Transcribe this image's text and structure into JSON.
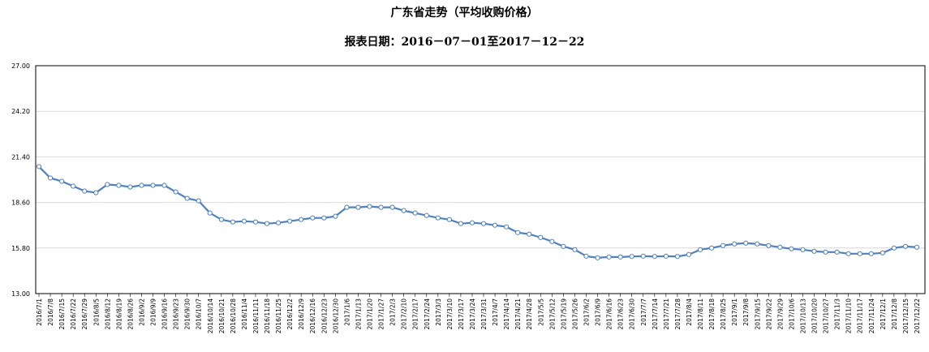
{
  "chart_data": {
    "type": "line",
    "title": "广东省走势（平均收购价格）",
    "subtitle": "报表日期：2016－07－01至2017－12－22",
    "xlabel": "",
    "ylabel": "",
    "ylim": [
      13.0,
      27.0
    ],
    "yticks": [
      "13.00",
      "15.80",
      "18.60",
      "21.40",
      "24.20",
      "27.00"
    ],
    "grid": {
      "horizontal": true,
      "vertical": false
    },
    "legend": "none",
    "line_color": "#4f81bd",
    "x": [
      "2016/7/1",
      "2016/7/8",
      "2016/7/15",
      "2016/7/22",
      "2016/7/29",
      "2016/8/5",
      "2016/8/12",
      "2016/8/19",
      "2016/8/26",
      "2016/9/2",
      "2016/9/9",
      "2016/9/16",
      "2016/9/23",
      "2016/9/30",
      "2016/10/7",
      "2016/10/14",
      "2016/10/21",
      "2016/10/28",
      "2016/11/4",
      "2016/11/11",
      "2016/11/18",
      "2016/11/25",
      "2016/12/2",
      "2016/12/9",
      "2016/12/16",
      "2016/12/23",
      "2016/12/30",
      "2017/1/6",
      "2017/1/13",
      "2017/1/20",
      "2017/1/27",
      "2017/2/3",
      "2017/2/10",
      "2017/2/17",
      "2017/2/24",
      "2017/3/3",
      "2017/3/10",
      "2017/3/17",
      "2017/3/24",
      "2017/3/31",
      "2017/4/7",
      "2017/4/14",
      "2017/4/21",
      "2017/4/28",
      "2017/5/5",
      "2017/5/12",
      "2017/5/19",
      "2017/5/26",
      "2017/6/2",
      "2017/6/9",
      "2017/6/16",
      "2017/6/23",
      "2017/6/30",
      "2017/7/7",
      "2017/7/14",
      "2017/7/21",
      "2017/7/28",
      "2017/8/4",
      "2017/8/11",
      "2017/8/18",
      "2017/8/25",
      "2017/9/1",
      "2017/9/8",
      "2017/9/15",
      "2017/9/22",
      "2017/9/29",
      "2017/10/6",
      "2017/10/13",
      "2017/10/20",
      "2017/10/27",
      "2017/11/3",
      "2017/11/10",
      "2017/11/17",
      "2017/11/24",
      "2017/12/1",
      "2017/12/8",
      "2017/12/15",
      "2017/12/22"
    ],
    "series": [
      {
        "values": [
          20.8,
          20.1,
          19.9,
          19.6,
          19.3,
          19.2,
          19.7,
          19.65,
          19.55,
          19.65,
          19.65,
          19.65,
          19.25,
          18.85,
          18.7,
          17.95,
          17.55,
          17.4,
          17.45,
          17.4,
          17.3,
          17.35,
          17.45,
          17.55,
          17.65,
          17.65,
          17.75,
          18.3,
          18.3,
          18.35,
          18.3,
          18.3,
          18.1,
          17.95,
          17.8,
          17.65,
          17.55,
          17.3,
          17.35,
          17.3,
          17.2,
          17.1,
          16.75,
          16.65,
          16.45,
          16.2,
          15.9,
          15.7,
          15.3,
          15.2,
          15.25,
          15.25,
          15.28,
          15.3,
          15.28,
          15.3,
          15.28,
          15.4,
          15.7,
          15.8,
          15.95,
          16.05,
          16.1,
          16.05,
          15.95,
          15.85,
          15.75,
          15.7,
          15.6,
          15.55,
          15.55,
          15.45,
          15.45,
          15.45,
          15.5,
          15.8,
          15.9,
          15.85
        ]
      }
    ]
  }
}
